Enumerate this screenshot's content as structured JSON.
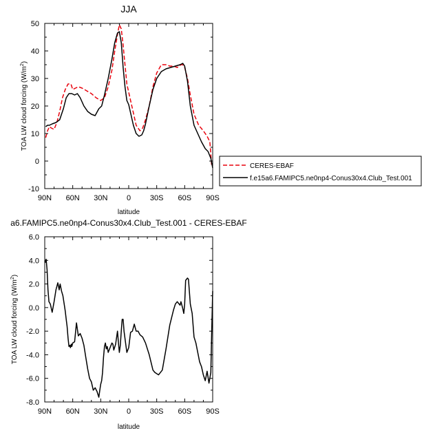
{
  "chart_data": [
    {
      "type": "line",
      "title": "JJA",
      "xlabel": "latitude",
      "ylabel": "TOA LW cloud forcing (W/m",
      "ylabel_sup": "2",
      "ylabel_end": ")",
      "xlim": [
        90,
        -90
      ],
      "ylim": [
        -10,
        50
      ],
      "x_ticks": [
        90,
        60,
        30,
        0,
        -30,
        -60,
        -90
      ],
      "x_tick_labels": [
        "90N",
        "60N",
        "30N",
        "0",
        "30S",
        "60S",
        "90S"
      ],
      "y_ticks": [
        -10,
        0,
        10,
        20,
        30,
        40,
        50
      ],
      "y_tick_labels": [
        "-10",
        "0",
        "10",
        "20",
        "30",
        "40",
        "50"
      ],
      "legend_placement": "right",
      "series": [
        {
          "name": "CERES-EBAF",
          "color": "#e8000b",
          "dash": "dashed",
          "x": [
            89,
            87,
            85,
            83,
            80,
            77,
            74,
            71,
            68,
            65,
            62,
            60,
            57,
            54,
            50,
            45,
            40,
            35,
            30,
            26,
            22,
            18,
            15,
            12,
            10,
            8,
            6,
            4,
            2,
            0,
            -2,
            -5,
            -8,
            -12,
            -15,
            -18,
            -22,
            -26,
            -30,
            -35,
            -40,
            -44,
            -48,
            -52,
            -56,
            -58,
            -60,
            -63,
            -66,
            -70,
            -75,
            -80,
            -84,
            -87,
            -89
          ],
          "y": [
            8.5,
            11,
            12.5,
            12,
            11.5,
            14,
            18,
            23,
            26,
            28,
            28,
            26,
            26.5,
            27,
            26.5,
            25.5,
            24.5,
            23,
            22,
            23,
            27,
            33,
            40,
            46,
            49.5,
            48,
            42,
            35,
            28,
            25,
            22,
            17.5,
            13,
            11,
            12,
            15,
            20,
            27,
            32,
            35,
            35,
            34.5,
            34.5,
            34,
            35,
            35,
            34,
            30,
            24,
            17,
            13,
            11,
            9,
            7,
            -2
          ]
        },
        {
          "name": "f.e15a6.FAMIPC5.ne0np4-Conus30x4.Club_Test.001",
          "color": "#000000",
          "dash": "solid",
          "x": [
            89,
            87,
            85,
            82,
            78,
            74,
            70,
            67,
            64,
            61,
            58,
            55,
            52,
            48,
            44,
            40,
            36,
            32,
            29,
            26,
            22,
            18,
            15,
            12,
            10,
            8,
            6,
            4,
            2,
            0,
            -2,
            -5,
            -8,
            -11,
            -14,
            -16,
            -18,
            -22,
            -26,
            -30,
            -35,
            -40,
            -45,
            -50,
            -55,
            -58,
            -60,
            -63,
            -66,
            -70,
            -74,
            -78,
            -82,
            -85,
            -88,
            -90
          ],
          "y": [
            12.5,
            13,
            13,
            13.5,
            14,
            15,
            19,
            23,
            24.5,
            24.5,
            24,
            24.5,
            23,
            20,
            18,
            17,
            16.5,
            19,
            20,
            24,
            30,
            37,
            43,
            46.5,
            47,
            43,
            34,
            27,
            22,
            20.5,
            17.5,
            13,
            10,
            9,
            9.5,
            11,
            13.5,
            20,
            26,
            30,
            32.5,
            33.5,
            34,
            34.5,
            35,
            35.5,
            34.5,
            29,
            20,
            13,
            10,
            7,
            4.5,
            3.5,
            1,
            -2.5
          ]
        }
      ]
    },
    {
      "type": "line",
      "title": "a6.FAMIPC5.ne0np4-Conus30x4.Club_Test.001 - CERES-EBAF",
      "xlabel": "latitude",
      "ylabel": "TOA LW cloud forcing (W/m",
      "ylabel_sup": "2",
      "ylabel_end": ")",
      "xlim": [
        90,
        -90
      ],
      "ylim": [
        -8,
        6
      ],
      "x_ticks": [
        90,
        60,
        30,
        0,
        -30,
        -60,
        -90
      ],
      "x_tick_labels": [
        "90N",
        "60N",
        "30N",
        "0",
        "30S",
        "60S",
        "90S"
      ],
      "y_ticks": [
        -8,
        -6,
        -4,
        -2,
        0,
        2,
        4,
        6
      ],
      "y_tick_labels": [
        "-8.0",
        "-6.0",
        "-4.0",
        "-2.0",
        "0.0",
        "2.0",
        "4.0",
        "6.0"
      ],
      "series": [
        {
          "name": "",
          "color": "#000000",
          "dash": "solid",
          "x": [
            89.5,
            88.5,
            87.5,
            86.5,
            85.5,
            84,
            82,
            80,
            78,
            76,
            74.5,
            73.5,
            72,
            70.5,
            69,
            68,
            67,
            66,
            65,
            64,
            63,
            62.5,
            61.5,
            61,
            60,
            58,
            56,
            54,
            52,
            50,
            48,
            46,
            44,
            42,
            40,
            38,
            36,
            34,
            32,
            31,
            30,
            29,
            28,
            27,
            26,
            25,
            24,
            23,
            22,
            20,
            18,
            17,
            16,
            14,
            12,
            11,
            10,
            9,
            8,
            7,
            6,
            5,
            3,
            2,
            0,
            -2,
            -4,
            -6,
            -8,
            -10,
            -12,
            -15,
            -18,
            -22,
            -26,
            -28,
            -32,
            -36,
            -40,
            -44,
            -48,
            -50,
            -52,
            -55,
            -56,
            -58,
            -59,
            -60,
            -61,
            -63,
            -64,
            -66,
            -68,
            -70,
            -72,
            -74,
            -76,
            -78,
            -80,
            -82,
            -84,
            -86,
            -88,
            -89,
            -90
          ],
          "y": [
            3.8,
            4.1,
            3.2,
            1.5,
            0.5,
            0.3,
            -0.4,
            0.5,
            1.5,
            2.1,
            1.5,
            2.0,
            1.4,
            1.0,
            0.2,
            -0.3,
            -1.0,
            -1.6,
            -2.6,
            -3.3,
            -3.2,
            -3.4,
            -3.1,
            -3.3,
            -3.0,
            -2.9,
            -1.3,
            -2.4,
            -2.2,
            -2.6,
            -3.2,
            -4.2,
            -5.2,
            -6.0,
            -6.3,
            -7.0,
            -6.8,
            -7.1,
            -7.6,
            -7.0,
            -6.5,
            -6.2,
            -5.5,
            -4.2,
            -3.3,
            -3.0,
            -3.5,
            -3.3,
            -3.8,
            -3.4,
            -3.0,
            -3.1,
            -3.6,
            -3.1,
            -2.0,
            -3.0,
            -3.8,
            -3.2,
            -2.0,
            -1.0,
            -1.0,
            -2.0,
            -3.2,
            -3.8,
            -3.4,
            -2.1,
            -2.0,
            -1.4,
            -2.0,
            -2.0,
            -2.3,
            -2.5,
            -3.0,
            -4.0,
            -5.3,
            -5.5,
            -5.7,
            -5.3,
            -3.5,
            -1.5,
            -0.2,
            0.3,
            0.5,
            0.2,
            0.5,
            -0.1,
            -0.5,
            0.3,
            2.3,
            2.5,
            2.4,
            0.3,
            -0.5,
            -2.5,
            -3.0,
            -3.8,
            -4.6,
            -5.0,
            -5.7,
            -6.2,
            -5.4,
            -6.4,
            -5.5,
            -2.0,
            1.4
          ]
        }
      ]
    }
  ]
}
